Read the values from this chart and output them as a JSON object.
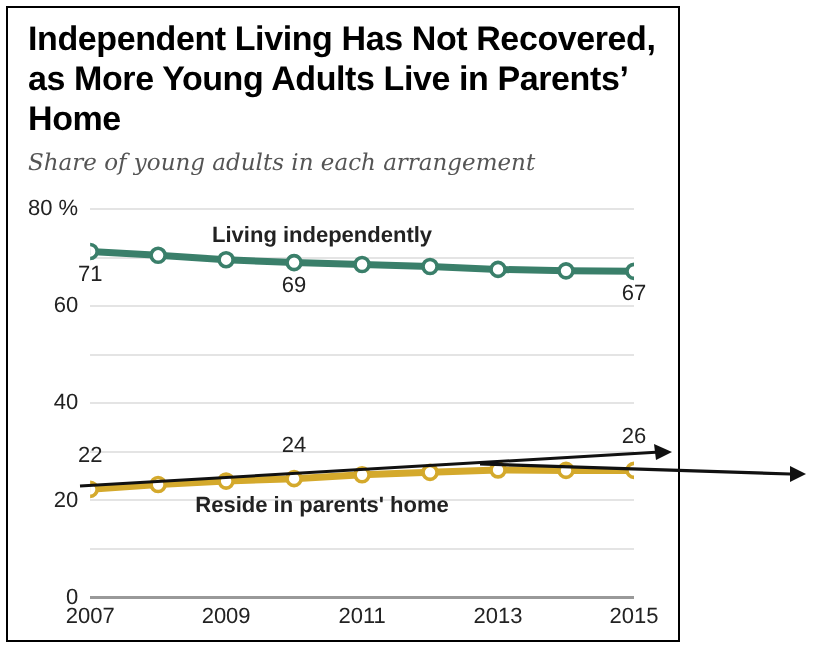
{
  "chart_data": {
    "type": "line",
    "title": "Independent Living Has Not Recovered, as More Young Adults Live in Parents’ Home",
    "subtitle": "Share of young adults in each arrangement",
    "x": [
      2007,
      2008,
      2009,
      2010,
      2011,
      2012,
      2013,
      2014,
      2015
    ],
    "series": [
      {
        "name": "Living independently",
        "color": "#3a7f6a",
        "values": [
          71.3,
          70.5,
          69.6,
          69,
          68.6,
          68.2,
          67.6,
          67.3,
          67.2
        ],
        "value_labels": [
          "71",
          null,
          null,
          "69",
          null,
          null,
          null,
          null,
          "67"
        ]
      },
      {
        "name": "Reside in parents' home",
        "color": "#d4a92c",
        "values": [
          22.3,
          23.3,
          24,
          24.5,
          25.3,
          25.8,
          26.3,
          26.2,
          26.2
        ],
        "value_labels": [
          "22",
          null,
          null,
          "24",
          null,
          null,
          null,
          null,
          "26"
        ]
      }
    ],
    "xlim": [
      2007,
      2015
    ],
    "xticks": [
      2007,
      2009,
      2011,
      2013,
      2015
    ],
    "ylim": [
      0,
      80
    ],
    "yticks": [
      0,
      {
        "value": 10,
        "label": null
      },
      20,
      {
        "value": 30,
        "label": null
      },
      40,
      {
        "value": 50,
        "label": null
      },
      60,
      {
        "value": 70,
        "label": null
      },
      {
        "value": 80,
        "label": "80 %"
      }
    ],
    "grid": "y",
    "legend": false,
    "marker": "circle",
    "line_style": "solid"
  }
}
